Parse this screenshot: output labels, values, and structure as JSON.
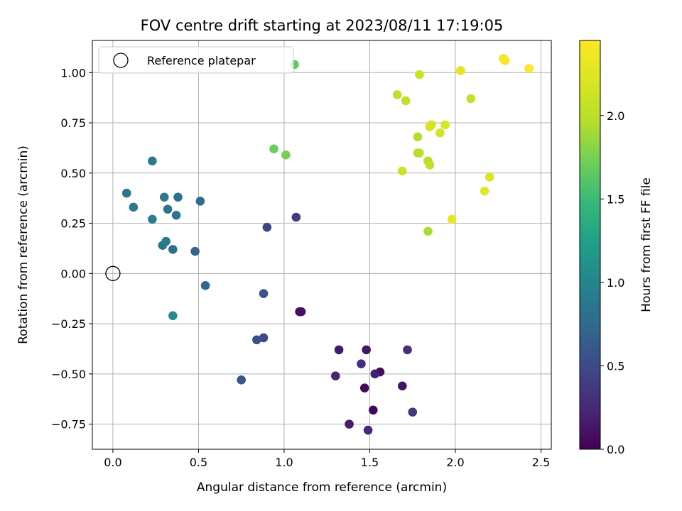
{
  "chart_data": {
    "type": "scatter",
    "title": "FOV centre drift starting at 2023/08/11 17:19:05",
    "xlabel": "Angular distance from reference (arcmin)",
    "ylabel": "Rotation from reference (arcmin)",
    "xlim": [
      -0.12,
      2.56
    ],
    "ylim": [
      -0.875,
      1.16
    ],
    "xticks": [
      0.0,
      0.5,
      1.0,
      1.5,
      2.0,
      2.5
    ],
    "xtick_labels": [
      "0.0",
      "0.5",
      "1.0",
      "1.5",
      "2.0",
      "2.5"
    ],
    "yticks": [
      -0.75,
      -0.5,
      -0.25,
      0.0,
      0.25,
      0.5,
      0.75,
      1.0
    ],
    "ytick_labels": [
      "−0.75",
      "−0.50",
      "−0.25",
      "0.00",
      "0.25",
      "0.50",
      "0.75",
      "1.00"
    ],
    "grid": true,
    "legend": {
      "position": "top-left",
      "entries": [
        "Reference platepar"
      ]
    },
    "reference_point": {
      "x": 0.0,
      "y": 0.0
    },
    "colorbar": {
      "label": "Hours from first FF file",
      "colormap": "viridis",
      "range": [
        0.0,
        2.45
      ],
      "ticks": [
        0.0,
        0.5,
        1.0,
        1.5,
        2.0
      ],
      "tick_labels": [
        "0.0",
        "0.5",
        "1.0",
        "1.5",
        "2.0"
      ]
    },
    "points": [
      {
        "x": 1.52,
        "y": -0.68,
        "h": 0.03
      },
      {
        "x": 1.09,
        "y": -0.19,
        "h": 0.08
      },
      {
        "x": 1.1,
        "y": -0.19,
        "h": 0.1
      },
      {
        "x": 1.47,
        "y": -0.57,
        "h": 0.05
      },
      {
        "x": 1.56,
        "y": -0.49,
        "h": 0.07
      },
      {
        "x": 1.69,
        "y": -0.56,
        "h": 0.12
      },
      {
        "x": 1.48,
        "y": -0.38,
        "h": 0.12
      },
      {
        "x": 1.32,
        "y": -0.38,
        "h": 0.15
      },
      {
        "x": 1.38,
        "y": -0.75,
        "h": 0.17
      },
      {
        "x": 1.53,
        "y": -0.5,
        "h": 0.2
      },
      {
        "x": 1.3,
        "y": -0.51,
        "h": 0.22
      },
      {
        "x": 1.49,
        "y": -0.78,
        "h": 0.25
      },
      {
        "x": 1.72,
        "y": -0.38,
        "h": 0.28
      },
      {
        "x": 1.45,
        "y": -0.45,
        "h": 0.3
      },
      {
        "x": 1.75,
        "y": -0.69,
        "h": 0.35
      },
      {
        "x": 1.07,
        "y": 0.28,
        "h": 0.4
      },
      {
        "x": 0.9,
        "y": 0.23,
        "h": 0.45
      },
      {
        "x": 0.88,
        "y": -0.32,
        "h": 0.5
      },
      {
        "x": 0.84,
        "y": -0.33,
        "h": 0.53
      },
      {
        "x": 0.88,
        "y": -0.1,
        "h": 0.55
      },
      {
        "x": 0.75,
        "y": -0.53,
        "h": 0.58
      },
      {
        "x": 0.48,
        "y": 0.11,
        "h": 0.7
      },
      {
        "x": 0.54,
        "y": -0.06,
        "h": 0.74
      },
      {
        "x": 0.51,
        "y": 0.36,
        "h": 0.78
      },
      {
        "x": 0.35,
        "y": 0.12,
        "h": 0.8
      },
      {
        "x": 0.38,
        "y": 0.38,
        "h": 0.82
      },
      {
        "x": 0.32,
        "y": 0.32,
        "h": 0.84
      },
      {
        "x": 0.37,
        "y": 0.29,
        "h": 0.86
      },
      {
        "x": 0.29,
        "y": 0.14,
        "h": 0.86
      },
      {
        "x": 0.3,
        "y": 0.38,
        "h": 0.88
      },
      {
        "x": 0.08,
        "y": 0.4,
        "h": 0.88
      },
      {
        "x": 0.23,
        "y": 0.56,
        "h": 0.9
      },
      {
        "x": 0.31,
        "y": 0.16,
        "h": 0.92
      },
      {
        "x": 0.12,
        "y": 0.33,
        "h": 0.92
      },
      {
        "x": 0.23,
        "y": 0.27,
        "h": 0.95
      },
      {
        "x": 0.35,
        "y": -0.21,
        "h": 1.05
      },
      {
        "x": 1.06,
        "y": 1.04,
        "h": 1.65
      },
      {
        "x": 0.94,
        "y": 0.62,
        "h": 1.7
      },
      {
        "x": 1.01,
        "y": 0.59,
        "h": 1.75
      },
      {
        "x": 1.84,
        "y": 0.21,
        "h": 1.92
      },
      {
        "x": 1.78,
        "y": 0.68,
        "h": 1.95
      },
      {
        "x": 1.78,
        "y": 0.6,
        "h": 1.97
      },
      {
        "x": 1.84,
        "y": 0.56,
        "h": 1.98
      },
      {
        "x": 1.79,
        "y": 0.6,
        "h": 2.0
      },
      {
        "x": 1.66,
        "y": 0.89,
        "h": 2.02
      },
      {
        "x": 1.71,
        "y": 0.86,
        "h": 2.04
      },
      {
        "x": 1.85,
        "y": 0.54,
        "h": 2.05
      },
      {
        "x": 2.09,
        "y": 0.87,
        "h": 2.08
      },
      {
        "x": 1.79,
        "y": 0.99,
        "h": 2.1
      },
      {
        "x": 1.69,
        "y": 0.51,
        "h": 2.12
      },
      {
        "x": 1.91,
        "y": 0.7,
        "h": 2.14
      },
      {
        "x": 1.86,
        "y": 0.74,
        "h": 2.16
      },
      {
        "x": 1.85,
        "y": 0.73,
        "h": 2.18
      },
      {
        "x": 1.94,
        "y": 0.74,
        "h": 2.2
      },
      {
        "x": 2.2,
        "y": 0.48,
        "h": 2.22
      },
      {
        "x": 2.17,
        "y": 0.41,
        "h": 2.26
      },
      {
        "x": 2.03,
        "y": 1.01,
        "h": 2.28
      },
      {
        "x": 1.98,
        "y": 0.27,
        "h": 2.3
      },
      {
        "x": 2.28,
        "y": 1.07,
        "h": 2.38
      },
      {
        "x": 2.29,
        "y": 1.06,
        "h": 2.4
      },
      {
        "x": 2.43,
        "y": 1.02,
        "h": 2.43
      }
    ]
  }
}
